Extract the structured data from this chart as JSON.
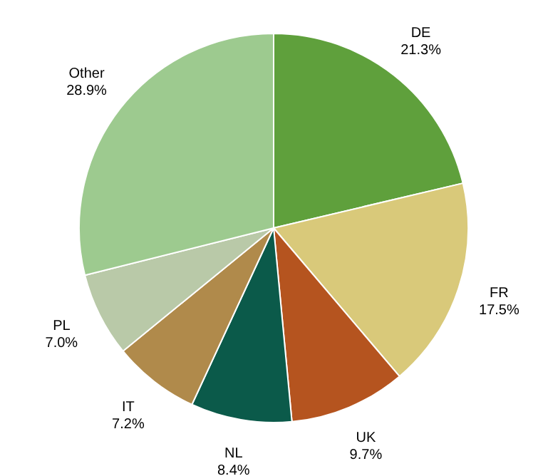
{
  "chart_data": {
    "type": "pie",
    "categories": [
      "DE",
      "FR",
      "UK",
      "NL",
      "IT",
      "PL",
      "Other"
    ],
    "values": [
      21.3,
      17.5,
      9.7,
      8.4,
      7.2,
      7.0,
      28.9
    ],
    "value_labels": [
      "21.3%",
      "17.5%",
      "9.7%",
      "8.4%",
      "7.2%",
      "7.0%",
      "28.9%"
    ],
    "colors": [
      "#5fa03c",
      "#d9c97a",
      "#b5541f",
      "#0b5a4a",
      "#b08a4b",
      "#b9c9a8",
      "#9dca8f"
    ],
    "legend": false
  }
}
